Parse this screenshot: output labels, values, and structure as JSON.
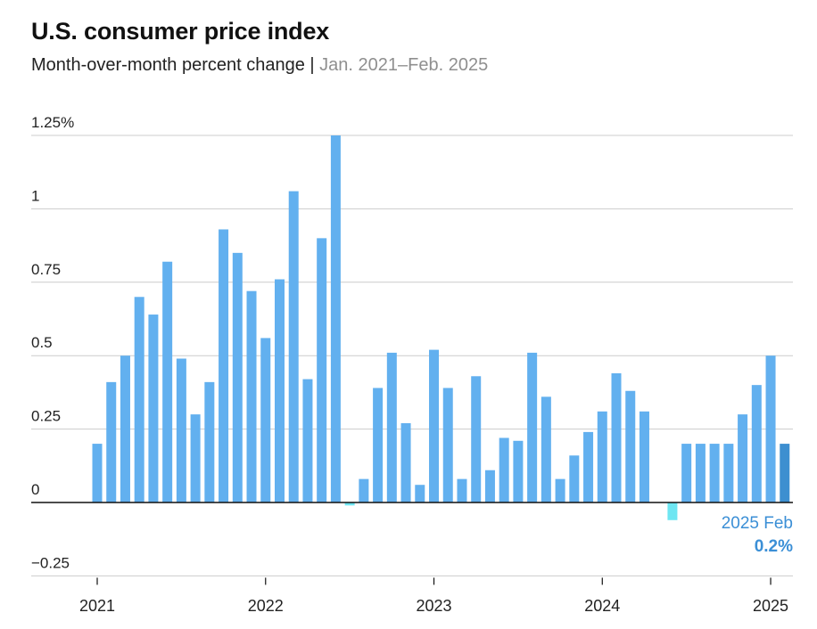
{
  "header": {
    "title": "U.S. consumer price index",
    "subtitle_main": "Month-over-month percent change",
    "subtitle_separator": "|",
    "subtitle_range": "Jan. 2021–Feb. 2025"
  },
  "colors": {
    "bar": "#62b0ef",
    "bar_negative": "#6ee6f2",
    "bar_highlight": "#3d8fd0",
    "annotation_label": "#3b8fd6",
    "grid": "#cccccc",
    "baseline": "#111111",
    "axis_text": "#222222"
  },
  "chart_data": {
    "type": "bar",
    "start_year": 2021,
    "start_month": 1,
    "values": [
      0.2,
      0.41,
      0.5,
      0.7,
      0.64,
      0.82,
      0.49,
      0.3,
      0.41,
      0.93,
      0.85,
      0.72,
      0.56,
      0.76,
      1.06,
      0.42,
      0.9,
      1.25,
      -0.01,
      0.08,
      0.39,
      0.51,
      0.27,
      0.06,
      0.52,
      0.39,
      0.08,
      0.43,
      0.11,
      0.22,
      0.21,
      0.51,
      0.36,
      0.08,
      0.16,
      0.24,
      0.31,
      0.44,
      0.38,
      0.31,
      0.0,
      -0.06,
      0.2,
      0.2,
      0.2,
      0.2,
      0.3,
      0.4,
      0.5,
      0.2
    ],
    "yticks": [
      1.25,
      1,
      0.75,
      0.5,
      0.25,
      0,
      -0.25
    ],
    "ytick_labels": [
      "1.25%",
      "1",
      "0.75",
      "0.5",
      "0.25",
      "0",
      "−0.25"
    ],
    "ylim": [
      -0.25,
      1.25
    ],
    "xticks": [
      {
        "label": "2021",
        "index": 0
      },
      {
        "label": "2022",
        "index": 12
      },
      {
        "label": "2023",
        "index": 24
      },
      {
        "label": "2024",
        "index": 36
      },
      {
        "label": "2025",
        "index": 48
      }
    ],
    "annotation": {
      "index": 49,
      "label_line1": "2025 Feb",
      "label_line2": "0.2%"
    },
    "grid": true
  }
}
